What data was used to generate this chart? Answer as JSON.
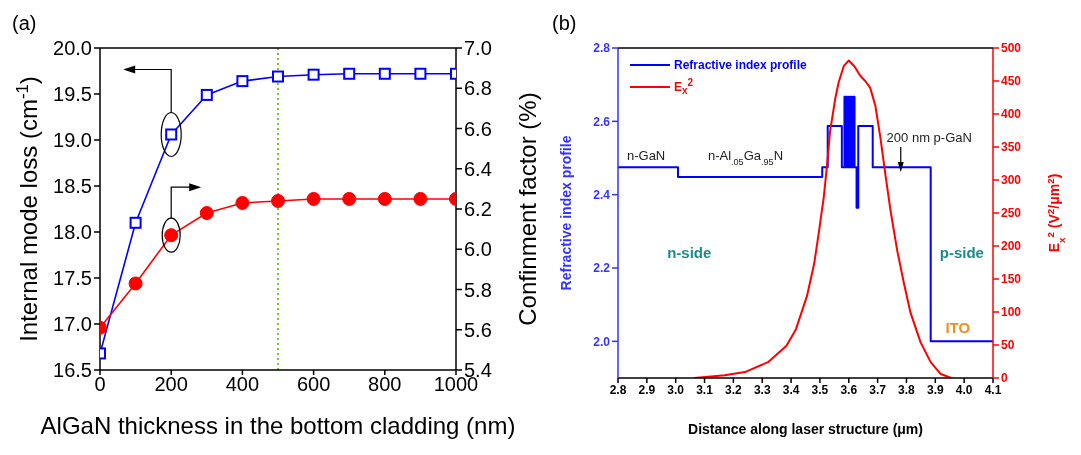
{
  "chart_data": [
    {
      "type": "line",
      "title": "(a)",
      "xlabel": "AlGaN thickness in the bottom cladding (nm)",
      "ylabel": "Internal mode loss (cm$^{-1}$)",
      "y2label": "Confinment factor (%)",
      "x": [
        0,
        100,
        200,
        300,
        400,
        500,
        600,
        700,
        800,
        900,
        1000
      ],
      "xlim": [
        0,
        1000
      ],
      "xticks": [
        0,
        200,
        400,
        600,
        800,
        1000
      ],
      "ylim": [
        16.5,
        20.0
      ],
      "yticks": [
        16.5,
        {
          "value": 17,
          "label": "17.0"
        },
        17.5,
        {
          "value": 18,
          "label": "18.0"
        },
        18.5,
        {
          "value": 19,
          "label": "19.0"
        },
        19.5,
        {
          "value": 20,
          "label": "20.0"
        }
      ],
      "y2lim": [
        5.4,
        7.0
      ],
      "y2ticks": [
        5.4,
        5.6,
        5.8,
        {
          "value": 6,
          "label": "6.0"
        },
        6.2,
        6.4,
        6.6,
        6.8,
        {
          "value": 7,
          "label": "7.0"
        }
      ],
      "series": [
        {
          "color": "#0000ff",
          "marker": "square",
          "values": [
            16.68,
            18.1,
            19.06,
            19.49,
            19.64,
            19.69,
            19.71,
            19.72,
            19.72,
            19.72,
            19.72
          ]
        },
        {
          "color": "#ff0000",
          "marker": "circle",
          "axis": "y2",
          "values": [
            5.61,
            5.83,
            6.07,
            6.18,
            6.23,
            6.24,
            6.25,
            6.25,
            6.25,
            6.25,
            6.25
          ]
        }
      ],
      "ref_lines": [
        {
          "axis": "x",
          "value": 500,
          "color": "#77cc22",
          "line_style": "dotted"
        }
      ]
    },
    {
      "type": "line",
      "title": "(b)",
      "xlabel": "Distance along laser structure (μm)",
      "ylabel": "Refractive index profile",
      "y2label": "E$_{x}$$^{2}$ (V$^{2}$/μm$^{2}$)",
      "xlim": [
        2.8,
        4.1
      ],
      "xticks": [
        2.8,
        2.9,
        {
          "value": 3,
          "label": "3.0"
        },
        3.1,
        3.2,
        3.3,
        3.4,
        3.5,
        3.6,
        3.7,
        3.8,
        3.9,
        {
          "value": 4,
          "label": "4.0"
        },
        4.1
      ],
      "ylim": [
        1.9,
        2.8
      ],
      "yticks": [
        {
          "value": 2,
          "label": "2.0"
        },
        2.2,
        2.4,
        2.6,
        2.8
      ],
      "y2lim": [
        0,
        500
      ],
      "y2ticks": [
        0,
        50,
        100,
        150,
        200,
        250,
        300,
        350,
        400,
        450,
        500
      ],
      "legend": "top left",
      "series": [
        {
          "name": "Refractive index profile",
          "type": "step",
          "color": "#0000ff",
          "x": [
            2.8,
            3.008,
            3.508,
            3.527,
            3.576,
            3.585,
            3.59,
            3.595,
            3.6,
            3.605,
            3.61,
            3.615,
            3.62,
            3.627,
            3.633,
            3.683,
            3.884,
            4.1
          ],
          "values": [
            2.475,
            2.448,
            2.475,
            2.587,
            2.475,
            2.667,
            2.475,
            2.667,
            2.475,
            2.667,
            2.475,
            2.667,
            2.475,
            2.364,
            2.587,
            2.475,
            2.0,
            2.0
          ]
        },
        {
          "name": "E$_{x}$$^{2}$",
          "color": "#ff0000",
          "axis": "y2",
          "x": [
            3.065,
            3.17,
            3.24,
            3.32,
            3.384,
            3.417,
            3.455,
            3.48,
            3.497,
            3.513,
            3.524,
            3.535,
            3.553,
            3.565,
            3.583,
            3.6,
            3.62,
            3.64,
            3.657,
            3.674,
            3.692,
            3.71,
            3.727,
            3.745,
            3.768,
            3.791,
            3.814,
            3.849,
            3.884,
            3.919,
            3.955
          ],
          "values": [
            0,
            4,
            9,
            24,
            49,
            74,
            124,
            173,
            223,
            273,
            319,
            373,
            423,
            448,
            473,
            481,
            472,
            458,
            450,
            440,
            413,
            363,
            308,
            253,
            193,
            144,
            99,
            54,
            24,
            6,
            0
          ]
        }
      ],
      "annotations": [
        "n-GaN",
        "n-Al$_{.05}$Ga$_{.95}$N",
        "200 nm p-GaN",
        "n-side",
        "p-side",
        "ITO"
      ]
    }
  ]
}
